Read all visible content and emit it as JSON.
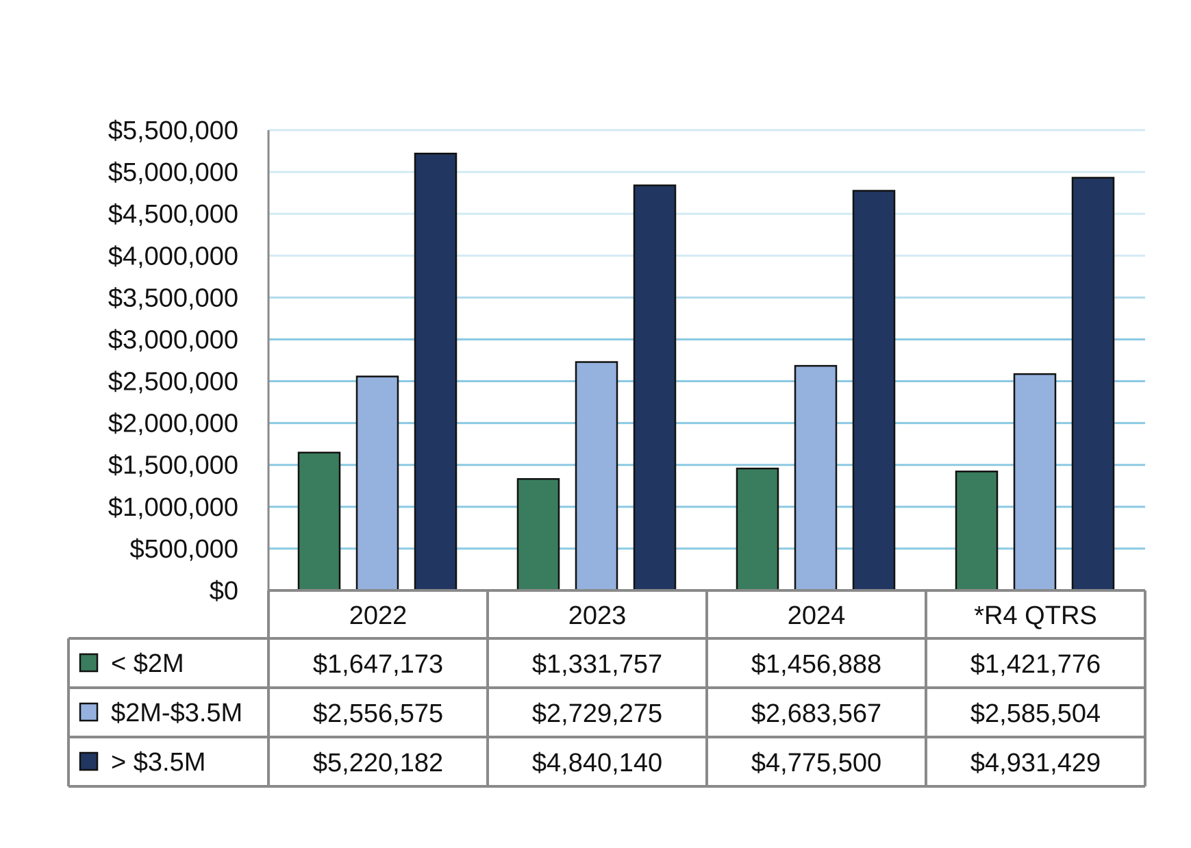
{
  "chart_data": {
    "type": "bar",
    "categories": [
      "2022",
      "2023",
      "2024",
      "*R4 QTRS"
    ],
    "series": [
      {
        "name": "< $2M",
        "color": "#3a7d5e",
        "values": [
          1647173,
          1331757,
          1456888,
          1421776
        ],
        "labels": [
          "$1,647,173",
          "$1,331,757",
          "$1,456,888",
          "$1,421,776"
        ]
      },
      {
        "name": "$2M-$3.5M",
        "color": "#95b1de",
        "values": [
          2556575,
          2729275,
          2683567,
          2585504
        ],
        "labels": [
          "$2,556,575",
          "$2,729,275",
          "$2,683,567",
          "$2,585,504"
        ]
      },
      {
        "name": "> $3.5M",
        "color": "#213761",
        "values": [
          5220182,
          4840140,
          4775500,
          4931429
        ],
        "labels": [
          "$5,220,182",
          "$4,840,140",
          "$4,775,500",
          "$4,931,429"
        ]
      }
    ],
    "ylim": [
      0,
      5500000
    ],
    "yticks": [
      "$0",
      "$500,000",
      "$1,000,000",
      "$1,500,000",
      "$2,000,000",
      "$2,500,000",
      "$3,000,000",
      "$3,500,000",
      "$4,000,000",
      "$4,500,000",
      "$5,000,000",
      "$5,500,000"
    ],
    "grid": true,
    "legend": "data-table",
    "gridline_color": "#7ec3e0",
    "table_border_color": "#8a8a8a"
  }
}
